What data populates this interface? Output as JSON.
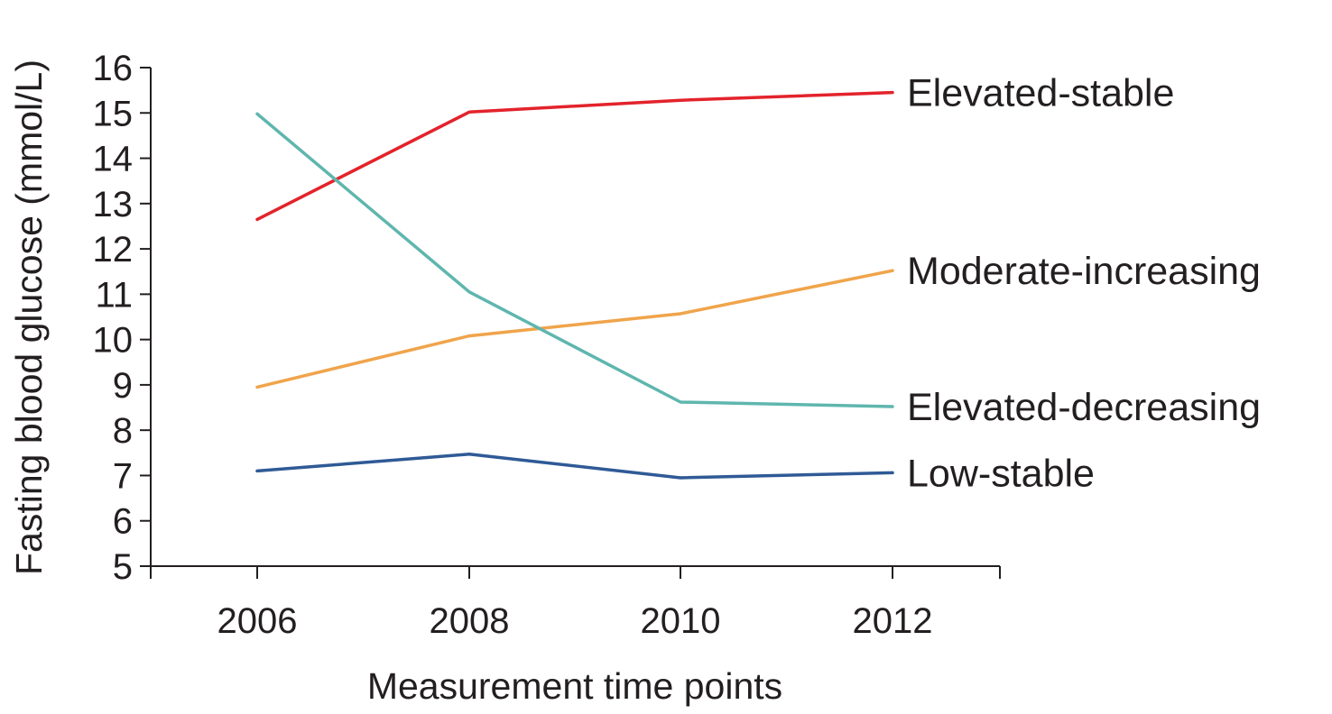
{
  "chart_data": {
    "type": "line",
    "xlabel": "Measurement time points",
    "ylabel": "Fasting blood glucose (mmol/L)",
    "categories": [
      "2006",
      "2008",
      "2010",
      "2012"
    ],
    "ylim": [
      5,
      16
    ],
    "yticks": [
      5,
      6,
      7,
      8,
      9,
      10,
      11,
      12,
      13,
      14,
      15,
      16
    ],
    "grid": false,
    "legend": "inline-right",
    "series": [
      {
        "name": "Elevated-stable",
        "color": "#e3232b",
        "values": [
          12.65,
          15.02,
          15.28,
          15.45
        ]
      },
      {
        "name": "Moderate-increasing",
        "color": "#f0a44b",
        "values": [
          8.95,
          10.08,
          10.57,
          11.52
        ]
      },
      {
        "name": "Elevated-decreasing",
        "color": "#5fb6ae",
        "values": [
          14.98,
          11.05,
          8.62,
          8.52
        ]
      },
      {
        "name": "Low-stable",
        "color": "#2f5a96",
        "values": [
          7.1,
          7.47,
          6.95,
          7.06
        ]
      }
    ]
  }
}
